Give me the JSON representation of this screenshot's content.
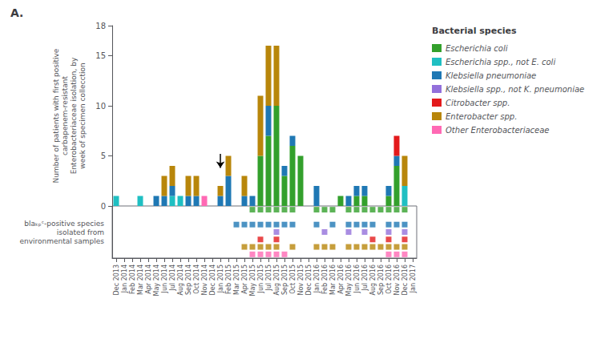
{
  "chart_data": [
    {
      "type": "bar",
      "title": "A.",
      "stacked": true,
      "grid": false,
      "tick_labels": "y",
      "legend": "right",
      "legend_title": "Bacterial species",
      "ylabel": "Number of patients with first positive\ncarbapenem-resistant\nEnterobacteriaceae isolation, by\nweek of specimen collecction",
      "ylim": [
        0,
        18
      ],
      "yticks": [
        0,
        5,
        10,
        15
      ],
      "categories": [
        "Dec 2013",
        "Jan 2014",
        "Feb 2014",
        "Mar 2014",
        "Apr 2014",
        "May 2014",
        "Jun 2014",
        "Jul 2014",
        "Aug 2014",
        "Sep 2014",
        "Oct 2014",
        "Nov 2014",
        "Dec 2014",
        "Jan 2015",
        "Feb 2015",
        "Mar 2015",
        "Apr 2015",
        "May 2015",
        "Jun 2015",
        "Jul 2015",
        "Aug 2015",
        "Sep 2015",
        "Oct 2015",
        "Nov 2015",
        "Dec 2015",
        "Jan 2016",
        "Feb 2016",
        "Mar 2016",
        "Apr 2016",
        "May 2016",
        "Jun 2016",
        "Jul 2016",
        "Aug 2016",
        "Sep 2016",
        "Oct 2016",
        "Nov 2016",
        "Dec 2016",
        "Jan 2017"
      ],
      "series": [
        {
          "name": "Escherichia coli",
          "color": "#33a02c",
          "values": [
            0,
            0,
            0,
            0,
            0,
            0,
            0,
            0,
            0,
            0,
            0,
            0,
            0,
            0,
            0,
            0,
            0,
            0,
            5,
            7,
            10,
            3,
            6,
            5,
            0,
            0,
            0,
            0,
            1,
            0,
            1,
            1,
            0,
            0,
            1,
            4,
            0,
            0
          ]
        },
        {
          "name": "Escherichia spp., not E. coli",
          "color": "#1fbfc2",
          "values": [
            1,
            0,
            0,
            1,
            0,
            0,
            0,
            1,
            1,
            0,
            0,
            0,
            0,
            0,
            0,
            0,
            0,
            0,
            0,
            0,
            0,
            0,
            0,
            0,
            0,
            0,
            0,
            0,
            0,
            0,
            0,
            0,
            0,
            0,
            0,
            0,
            2,
            0
          ]
        },
        {
          "name": "Klebsiella pneumoniae",
          "color": "#1f78b4",
          "values": [
            0,
            0,
            0,
            0,
            0,
            1,
            1,
            1,
            0,
            1,
            1,
            0,
            0,
            1,
            3,
            0,
            1,
            1,
            0,
            3,
            0,
            1,
            1,
            0,
            0,
            2,
            0,
            0,
            0,
            1,
            1,
            1,
            0,
            0,
            1,
            1,
            0,
            0
          ]
        },
        {
          "name": "Klebsiella spp., not K. pneumoniae",
          "color": "#9370db",
          "values": [
            0,
            0,
            0,
            0,
            0,
            0,
            0,
            0,
            0,
            0,
            0,
            0,
            0,
            0,
            0,
            0,
            0,
            0,
            0,
            0,
            0,
            0,
            0,
            0,
            0,
            0,
            0,
            0,
            0,
            0,
            0,
            0,
            0,
            0,
            0,
            0,
            0,
            0
          ]
        },
        {
          "name": "Citrobacter spp.",
          "color": "#e31a1c",
          "values": [
            0,
            0,
            0,
            0,
            0,
            0,
            0,
            0,
            0,
            0,
            0,
            0,
            0,
            0,
            0,
            0,
            0,
            0,
            0,
            0,
            0,
            0,
            0,
            0,
            0,
            0,
            0,
            0,
            0,
            0,
            0,
            0,
            0,
            0,
            0,
            2,
            0,
            0
          ]
        },
        {
          "name": "Enterobacter spp.",
          "color": "#b8860b",
          "values": [
            0,
            0,
            0,
            0,
            0,
            0,
            2,
            2,
            0,
            2,
            2,
            0,
            0,
            1,
            2,
            0,
            2,
            0,
            6,
            6,
            6,
            0,
            0,
            0,
            0,
            0,
            0,
            0,
            0,
            0,
            0,
            0,
            0,
            0,
            0,
            0,
            3,
            0
          ]
        },
        {
          "name": "Other Enterobacteriaceae",
          "color": "#ff69b4",
          "values": [
            0,
            0,
            0,
            0,
            0,
            0,
            0,
            0,
            0,
            0,
            0,
            1,
            0,
            0,
            0,
            0,
            0,
            0,
            0,
            0,
            0,
            0,
            0,
            0,
            0,
            0,
            0,
            0,
            0,
            0,
            0,
            0,
            0,
            0,
            0,
            0,
            0,
            0
          ]
        }
      ],
      "annotations": [
        {
          "type": "arrow",
          "x": "Jan 2015",
          "y_from": 5.2,
          "y_to": 3.8
        }
      ]
    },
    {
      "type": "scatter",
      "marker": "square",
      "grid": false,
      "tick_labels": "x",
      "ylabel": "blaₖₚᶜ-positive species\nisolated from\nenvironmental samples",
      "categories": [
        "Dec 2013",
        "Jan 2014",
        "Feb 2014",
        "Mar 2014",
        "Apr 2014",
        "May 2014",
        "Jun 2014",
        "Jul 2014",
        "Aug 2014",
        "Sep 2014",
        "Oct 2014",
        "Nov 2014",
        "Dec 2014",
        "Jan 2015",
        "Feb 2015",
        "Mar 2015",
        "Apr 2015",
        "May 2015",
        "Jun 2015",
        "Jul 2015",
        "Aug 2015",
        "Sep 2015",
        "Oct 2015",
        "Nov 2015",
        "Dec 2015",
        "Jan 2016",
        "Feb 2016",
        "Mar 2016",
        "Apr 2016",
        "May 2016",
        "Jun 2016",
        "Jul 2016",
        "Aug 2016",
        "Sep 2016",
        "Oct 2016",
        "Nov 2016",
        "Dec 2016",
        "Jan 2017"
      ],
      "series": [
        {
          "name": "Escherichia coli",
          "color": "#33a02c",
          "values": [
            0,
            0,
            0,
            0,
            0,
            0,
            0,
            0,
            0,
            0,
            0,
            0,
            0,
            0,
            0,
            0,
            0,
            1,
            1,
            1,
            1,
            1,
            1,
            0,
            0,
            1,
            1,
            1,
            0,
            1,
            1,
            1,
            1,
            1,
            1,
            1,
            1,
            0
          ]
        },
        {
          "name": "Escherichia spp., not E. coli",
          "color": "#1fbfc2",
          "values": [
            0,
            0,
            0,
            0,
            0,
            0,
            0,
            0,
            0,
            0,
            0,
            0,
            0,
            0,
            0,
            0,
            0,
            0,
            0,
            0,
            0,
            0,
            0,
            0,
            0,
            0,
            0,
            0,
            0,
            0,
            0,
            0,
            0,
            0,
            0,
            0,
            0,
            0
          ]
        },
        {
          "name": "Klebsiella pneumoniae",
          "color": "#1f78b4",
          "values": [
            0,
            0,
            0,
            0,
            0,
            0,
            0,
            0,
            0,
            0,
            0,
            0,
            0,
            0,
            0,
            1,
            1,
            1,
            1,
            1,
            1,
            1,
            1,
            0,
            0,
            1,
            0,
            1,
            0,
            1,
            1,
            1,
            1,
            0,
            1,
            1,
            1,
            0
          ]
        },
        {
          "name": "Klebsiella spp., not K. pneumoniae",
          "color": "#9370db",
          "values": [
            0,
            0,
            0,
            0,
            0,
            0,
            0,
            0,
            0,
            0,
            0,
            0,
            0,
            0,
            0,
            0,
            0,
            0,
            0,
            0,
            1,
            0,
            0,
            0,
            0,
            0,
            1,
            0,
            0,
            1,
            0,
            1,
            0,
            0,
            1,
            0,
            1,
            0
          ]
        },
        {
          "name": "Citrobacter spp.",
          "color": "#e31a1c",
          "values": [
            0,
            0,
            0,
            0,
            0,
            0,
            0,
            0,
            0,
            0,
            0,
            0,
            0,
            0,
            0,
            0,
            0,
            0,
            1,
            0,
            1,
            0,
            0,
            0,
            0,
            0,
            0,
            0,
            0,
            0,
            0,
            0,
            1,
            0,
            1,
            0,
            1,
            0
          ]
        },
        {
          "name": "Enterobacter spp.",
          "color": "#b8860b",
          "values": [
            0,
            0,
            0,
            0,
            0,
            0,
            0,
            0,
            0,
            0,
            0,
            0,
            0,
            0,
            0,
            0,
            1,
            1,
            1,
            1,
            1,
            0,
            1,
            0,
            0,
            1,
            1,
            1,
            0,
            1,
            1,
            1,
            1,
            1,
            1,
            1,
            1,
            0
          ]
        },
        {
          "name": "Other Enterobacteriaceae",
          "color": "#ff69b4",
          "values": [
            0,
            0,
            0,
            0,
            0,
            0,
            0,
            0,
            0,
            0,
            0,
            0,
            0,
            0,
            0,
            0,
            0,
            1,
            1,
            1,
            1,
            1,
            0,
            0,
            0,
            0,
            0,
            0,
            0,
            0,
            0,
            0,
            0,
            0,
            1,
            1,
            1,
            0
          ]
        }
      ]
    }
  ]
}
